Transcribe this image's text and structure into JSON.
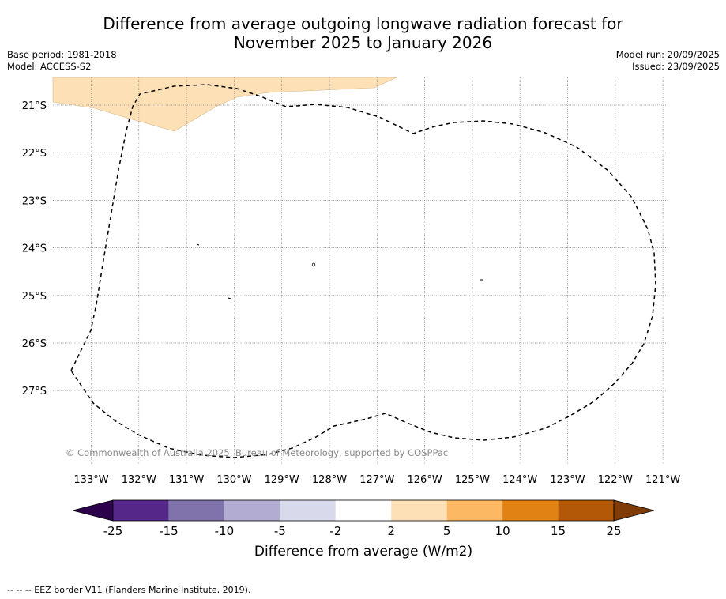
{
  "title_line1": "Difference from average outgoing longwave radiation forecast for",
  "title_line2": "November 2025 to January 2026",
  "base_period": "Base period: 1981-2018",
  "model": "Model: ACCESS-S2",
  "model_run": "Model run: 20/09/2025",
  "issued": "Issued: 23/09/2025",
  "copyright": "© Commonwealth of Australia 2025, Bureau of Meteorology, supported by COSPPac",
  "lat_labels": [
    "21°S",
    "22°S",
    "23°S",
    "24°S",
    "25°S",
    "26°S",
    "27°S"
  ],
  "lon_labels": [
    "133°W",
    "132°W",
    "131°W",
    "130°W",
    "129°W",
    "128°W",
    "127°W",
    "126°W",
    "125°W",
    "124°W",
    "123°W",
    "122°W",
    "121°W"
  ],
  "colorbar": {
    "ticks": [
      "-25",
      "-15",
      "-10",
      "-5",
      "-2",
      "2",
      "5",
      "10",
      "15",
      "25"
    ],
    "colors": [
      "#542788",
      "#8073ac",
      "#b2abd2",
      "#d8daeb",
      "#ffffff",
      "#fee0b6",
      "#fdb863",
      "#e08214",
      "#b35806"
    ],
    "under_color": "#2d004b",
    "over_color": "#7f3b08",
    "label": "Difference from average (W/m2)"
  },
  "legend_note": "-- -- -- EEZ border V11 (Flanders Marine Institute, 2019).",
  "anomaly_region_color": "#fee0b6"
}
